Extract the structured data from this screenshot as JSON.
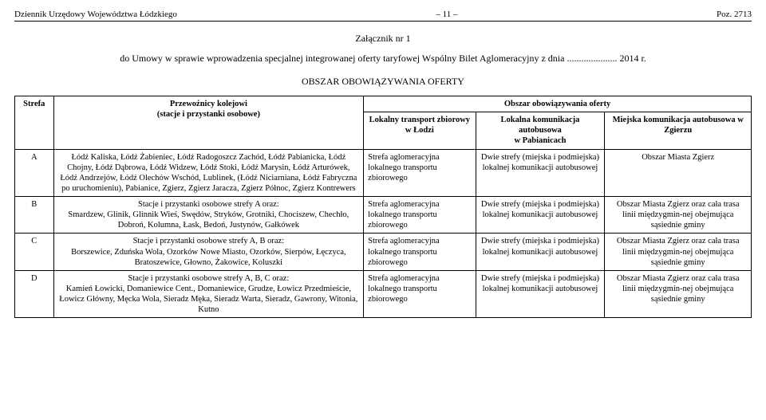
{
  "header": {
    "left": "Dziennik Urzędowy Województwa Łódzkiego",
    "center": "– 11 –",
    "right": "Poz. 2713"
  },
  "attachment": "Załącznik nr 1",
  "intro": "do Umowy w sprawie wprowadzenia specjalnej integrowanej oferty taryfowej Wspólny Bilet Aglomeracyjny z dnia ..................... 2014 r.",
  "section_title": "OBSZAR OBOWIĄZYWANIA OFERTY",
  "table": {
    "super_header": "Obszar obowiązywania oferty",
    "columns": {
      "strefa": "Strefa",
      "przew": "Przewoźnicy kolejowi\n(stacje i przystanki osobowe)",
      "lokalny": "Lokalny transport zbiorowy w Łodzi",
      "lokalna_kom": "Lokalna komunikacja autobusowa\nw Pabianicach",
      "miejska": "Miejska komunikacja autobusowa w Zgierzu"
    },
    "rows": [
      {
        "strefa": "A",
        "przew": "Łódź Kaliska, Łódź Żabieniec, Łódź Radogoszcz Zachód, Łódź Pabianicka, Łódź Chojny, Łódź Dąbrowa, Łódź Widzew, Łódź Stoki, Łódź Marysin, Łódź Arturówek, Łódź Andrzejów, Łódź Olechów Wschód, Lublinek, (Łódź Niciarniana, Łódź Fabryczna po uruchomieniu), Pabianice, Zgierz, Zgierz Jaracza, Zgierz Północ, Zgierz Kontrewers",
        "lokalny": "Strefa aglomeracyjna lokalnego transportu zbiorowego",
        "lokalna_kom": "Dwie strefy (miejska i podmiejska) lokalnej komunikacji autobusowej",
        "miejska": "Obszar Miasta Zgierz"
      },
      {
        "strefa": "B",
        "przew": "Stacje i przystanki osobowe strefy A oraz:\nSmardzew, Glinik, Glinnik Wieś, Swędów, Stryków, Grotniki, Chociszew, Chechło, Dobroń, Kolumna, Łask, Bedoń, Justynów, Gałkówek",
        "lokalny": "Strefa aglomeracyjna lokalnego transportu zbiorowego",
        "lokalna_kom": "Dwie strefy (miejska i podmiejska) lokalnej komunikacji autobusowej",
        "miejska": "Obszar Miasta Zgierz oraz cała trasa linii międzygmin-nej obejmująca sąsiednie gminy"
      },
      {
        "strefa": "C",
        "przew": "Stacje i przystanki osobowe strefy A, B oraz:\nBorszewice, Zduńska Wola, Ozorków Nowe Miasto, Ozorków, Sierpów, Łęczyca, Bratoszewice, Głowno, Żakowice, Koluszki",
        "lokalny": "Strefa aglomeracyjna lokalnego transportu zbiorowego",
        "lokalna_kom": "Dwie strefy (miejska i podmiejska) lokalnej komunikacji autobusowej",
        "miejska": "Obszar Miasta Zgierz oraz cała trasa linii międzygmin-nej obejmująca sąsiednie gminy"
      },
      {
        "strefa": "D",
        "przew": "Stacje i przystanki osobowe strefy A, B, C oraz:\nKamień Łowicki, Domaniewice Cent., Domaniewice, Grudze, Łowicz Przedmieście, Łowicz Główny, Męcka Wola, Sieradz Męka, Sieradz Warta, Sieradz, Gawrony, Witonia, Kutno",
        "lokalny": "Strefa aglomeracyjna lokalnego transportu zbiorowego",
        "lokalna_kom": "Dwie strefy (miejska i podmiejska) lokalnej komunikacji autobusowej",
        "miejska": "Obszar Miasta Zgierz oraz cała trasa linii międzygmin-nej obejmująca sąsiednie gminy"
      }
    ]
  }
}
